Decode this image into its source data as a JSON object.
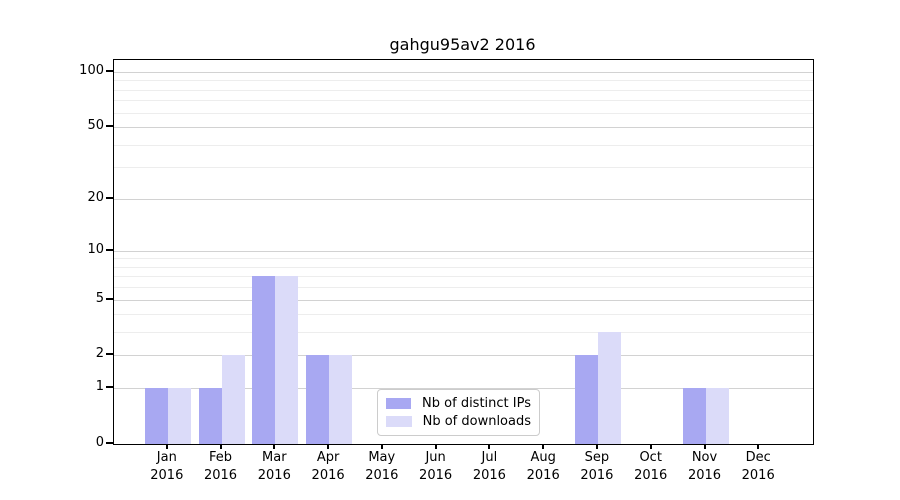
{
  "chart_data": {
    "type": "bar",
    "title": "gahgu95av2 2016",
    "categories": [
      "Jan",
      "Feb",
      "Mar",
      "Apr",
      "May",
      "Jun",
      "Jul",
      "Aug",
      "Sep",
      "Oct",
      "Nov",
      "Dec"
    ],
    "x_year_label": "2016",
    "series": [
      {
        "name": "Nb of distinct IPs",
        "color": "#a8a8f2",
        "values": [
          1,
          1,
          7,
          2,
          0,
          0,
          0,
          0,
          2,
          0,
          1,
          0
        ]
      },
      {
        "name": "Nb of downloads",
        "color": "#dbdbf9",
        "values": [
          1,
          2,
          7,
          2,
          0,
          0,
          0,
          0,
          3,
          0,
          1,
          0
        ]
      }
    ],
    "yscale": "log1p",
    "ylim": [
      0,
      116
    ],
    "yticks": [
      0,
      1,
      2,
      5,
      10,
      20,
      50,
      100
    ],
    "minor_gridlines": [
      3,
      4,
      6,
      7,
      8,
      9,
      30,
      40,
      60,
      70,
      80,
      90
    ],
    "xlabel": "",
    "ylabel": "",
    "grid": "horizontal-only",
    "legend_position": "bottom-center",
    "colors": {
      "major_grid": "#d2d2d2",
      "minor_grid": "#ededed",
      "axis": "#000000",
      "legend_border": "#cccccc",
      "background": "#ffffff"
    }
  }
}
